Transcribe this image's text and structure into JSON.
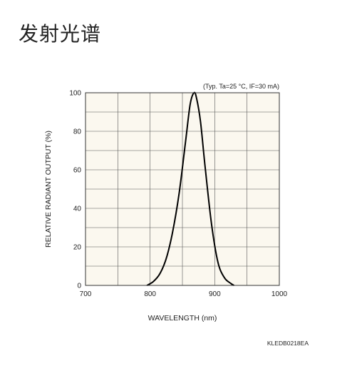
{
  "page": {
    "heading": "发射光谱"
  },
  "chart_data": {
    "type": "line",
    "title": "",
    "condition_note": "(Typ. Ta=25 °C, IF=30 mA)",
    "xlabel": "WAVELENGTH (nm)",
    "ylabel": "RELATIVE RADIANT OUTPUT (%)",
    "xlim": [
      700,
      1000
    ],
    "ylim": [
      0,
      100
    ],
    "x_ticks": [
      700,
      800,
      900,
      1000
    ],
    "y_ticks": [
      0,
      20,
      40,
      60,
      80,
      100
    ],
    "grid": true,
    "plot_background": "#fbf8ef",
    "line_color": "#000000",
    "document_code": "KLEDB0218EA",
    "series": [
      {
        "x": [
          795,
          805,
          815,
          825,
          835,
          845,
          855,
          862,
          868,
          872,
          878,
          885,
          895,
          905,
          915,
          925,
          930
        ],
        "y": [
          0,
          2,
          6,
          14,
          28,
          48,
          75,
          94,
          100,
          97,
          85,
          62,
          32,
          12,
          4,
          1,
          0
        ]
      }
    ]
  }
}
